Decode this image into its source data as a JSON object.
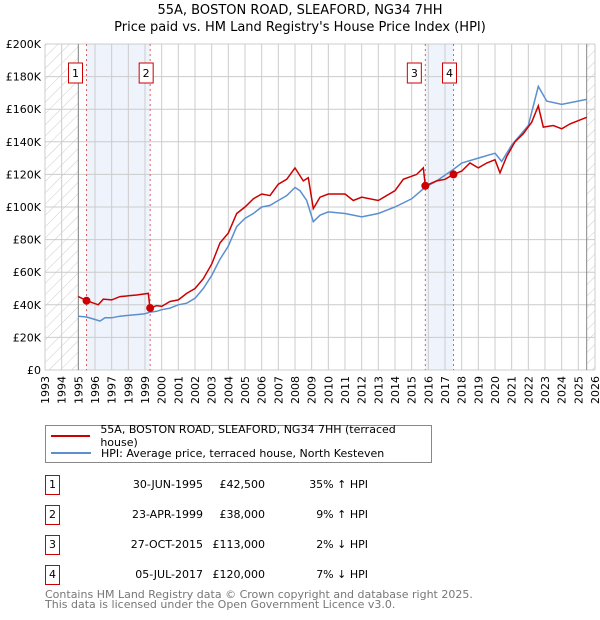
{
  "title": "55A, BOSTON ROAD, SLEAFORD, NG34 7HH",
  "subtitle": "Price paid vs. HM Land Registry's House Price Index (HPI)",
  "chart_data": {
    "type": "line",
    "title": "55A, BOSTON ROAD, SLEAFORD, NG34 7HH",
    "subtitle": "Price paid vs. HM Land Registry's House Price Index (HPI)",
    "xlim": [
      1993,
      2026
    ],
    "ylim": [
      0,
      200000
    ],
    "y_ticks": [
      0,
      20000,
      40000,
      60000,
      80000,
      100000,
      120000,
      140000,
      160000,
      180000,
      200000
    ],
    "y_tick_labels": [
      "£0",
      "£20K",
      "£40K",
      "£60K",
      "£80K",
      "£100K",
      "£120K",
      "£140K",
      "£160K",
      "£180K",
      "£200K"
    ],
    "x_tick_labels": [
      "1993",
      "1994",
      "1995",
      "1996",
      "1997",
      "1998",
      "1999",
      "2000",
      "2001",
      "2002",
      "2003",
      "2004",
      "2005",
      "2006",
      "2007",
      "2008",
      "2009",
      "2010",
      "2011",
      "2012",
      "2013",
      "2014",
      "2015",
      "2016",
      "2017",
      "2018",
      "2019",
      "2020",
      "2021",
      "2022",
      "2023",
      "2024",
      "2025",
      "2026"
    ],
    "grid": true,
    "colors": {
      "property": "#cc0000",
      "hpi": "#5b8fd0",
      "shade": "#eef3fc"
    },
    "series": [
      {
        "name": "55A, BOSTON ROAD, SLEAFORD, NG34 7HH (terraced house)",
        "color": "#cc0000",
        "x": [
          1995,
          1995.5,
          1996.2,
          1996.5,
          1997,
          1997.5,
          1998,
          1998.5,
          1999.2,
          1999.3,
          1999.7,
          2000,
          2000.5,
          2001,
          2001.5,
          2002,
          2002.5,
          2003,
          2003.5,
          2004,
          2004.5,
          2005,
          2005.5,
          2006,
          2006.5,
          2007,
          2007.5,
          2008,
          2008.5,
          2008.8,
          2009.1,
          2009.5,
          2010,
          2011,
          2011.5,
          2012,
          2013,
          2014,
          2014.5,
          2015.3,
          2015.7,
          2015.82,
          2016.5,
          2017,
          2017.51,
          2018,
          2018.5,
          2019,
          2019.5,
          2020,
          2020.3,
          2020.7,
          2021.2,
          2021.7,
          2022.2,
          2022.6,
          2022.9,
          2023.5,
          2024,
          2024.5,
          2025.5
        ],
        "y": [
          45000,
          42500,
          40000,
          43500,
          43000,
          45000,
          45500,
          46000,
          47000,
          38000,
          39500,
          39000,
          42000,
          43000,
          47000,
          50000,
          56000,
          65000,
          78000,
          84000,
          96000,
          100000,
          105000,
          108000,
          107000,
          114000,
          117000,
          124000,
          116000,
          118000,
          99000,
          106000,
          108000,
          108000,
          104000,
          106000,
          104000,
          110000,
          117000,
          120000,
          124000,
          113000,
          116000,
          117000,
          120000,
          122000,
          127000,
          124000,
          127000,
          129000,
          121000,
          131000,
          140000,
          145000,
          152000,
          162000,
          149000,
          150000,
          148000,
          151000,
          155000
        ]
      },
      {
        "name": "HPI: Average price, terraced house, North Kesteven",
        "color": "#5b8fd0",
        "x": [
          1995,
          1995.5,
          1996,
          1996.3,
          1996.6,
          1997,
          1997.5,
          1998,
          1998.5,
          1999,
          1999.3,
          1999.7,
          2000,
          2000.5,
          2001,
          2001.5,
          2002,
          2002.5,
          2003,
          2003.5,
          2004,
          2004.5,
          2005,
          2005.5,
          2006,
          2006.5,
          2007,
          2007.5,
          2008,
          2008.3,
          2008.7,
          2009.1,
          2009.5,
          2010,
          2011,
          2012,
          2013,
          2014,
          2015,
          2015.8,
          2016.5,
          2017.5,
          2018,
          2019,
          2020,
          2020.4,
          2021,
          2022,
          2022.6,
          2023.1,
          2024,
          2025.5
        ],
        "y": [
          33000,
          32500,
          31000,
          30000,
          32000,
          32000,
          33000,
          33500,
          34000,
          34500,
          35500,
          36000,
          37000,
          38000,
          40000,
          41000,
          44000,
          50000,
          58000,
          68000,
          76000,
          88000,
          93000,
          96000,
          100000,
          101000,
          104000,
          107000,
          112000,
          110000,
          104000,
          91000,
          95000,
          97000,
          96000,
          94000,
          96000,
          100000,
          105000,
          112000,
          116000,
          123000,
          127000,
          130000,
          133000,
          128000,
          138000,
          150000,
          174000,
          165000,
          163000,
          166000
        ]
      }
    ],
    "sales": [
      {
        "label": "1",
        "x": 1995.49,
        "y": 42500
      },
      {
        "label": "2",
        "x": 1999.31,
        "y": 38000
      },
      {
        "label": "3",
        "x": 2015.82,
        "y": 113000
      },
      {
        "label": "4",
        "x": 2017.51,
        "y": 120000
      }
    ]
  },
  "legend": {
    "property": "55A, BOSTON ROAD, SLEAFORD, NG34 7HH (terraced house)",
    "hpi": "HPI: Average price, terraced house, North Kesteven"
  },
  "transactions": [
    {
      "num": "1",
      "date": "30-JUN-1995",
      "price": "£42,500",
      "hpi": "35% ↑ HPI"
    },
    {
      "num": "2",
      "date": "23-APR-1999",
      "price": "£38,000",
      "hpi": "9% ↑ HPI"
    },
    {
      "num": "3",
      "date": "27-OCT-2015",
      "price": "£113,000",
      "hpi": "2% ↓ HPI"
    },
    {
      "num": "4",
      "date": "05-JUL-2017",
      "price": "£120,000",
      "hpi": "7% ↓ HPI"
    }
  ],
  "footer": {
    "line1": "Contains HM Land Registry data © Crown copyright and database right 2025.",
    "line2": "This data is licensed under the Open Government Licence v3.0."
  }
}
